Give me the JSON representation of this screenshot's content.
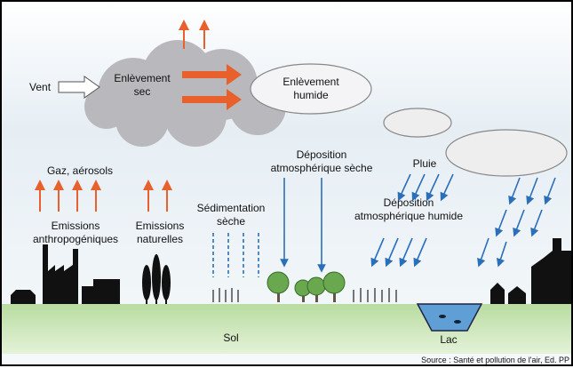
{
  "labels": {
    "vent": "Vent",
    "enlevement_sec": [
      "Enlèvement",
      "sec"
    ],
    "enlevement_humide": [
      "Enlèvement",
      "humide"
    ],
    "gaz": "Gaz, aérosols",
    "emissions_anthropo": [
      "Emissions",
      "anthropogéniques"
    ],
    "emissions_naturelles": [
      "Emissions",
      "naturelles"
    ],
    "sedimentation": [
      "Sédimentation",
      "sèche"
    ],
    "deposition_seche": [
      "Déposition",
      "atmosphérique sèche"
    ],
    "pluie": "Pluie",
    "deposition_humide": [
      "Déposition",
      "atmosphérique humide"
    ],
    "sol": "Sol",
    "lac": "Lac",
    "source": "Source : Santé et pollution de l'air, Ed. PP"
  }
}
